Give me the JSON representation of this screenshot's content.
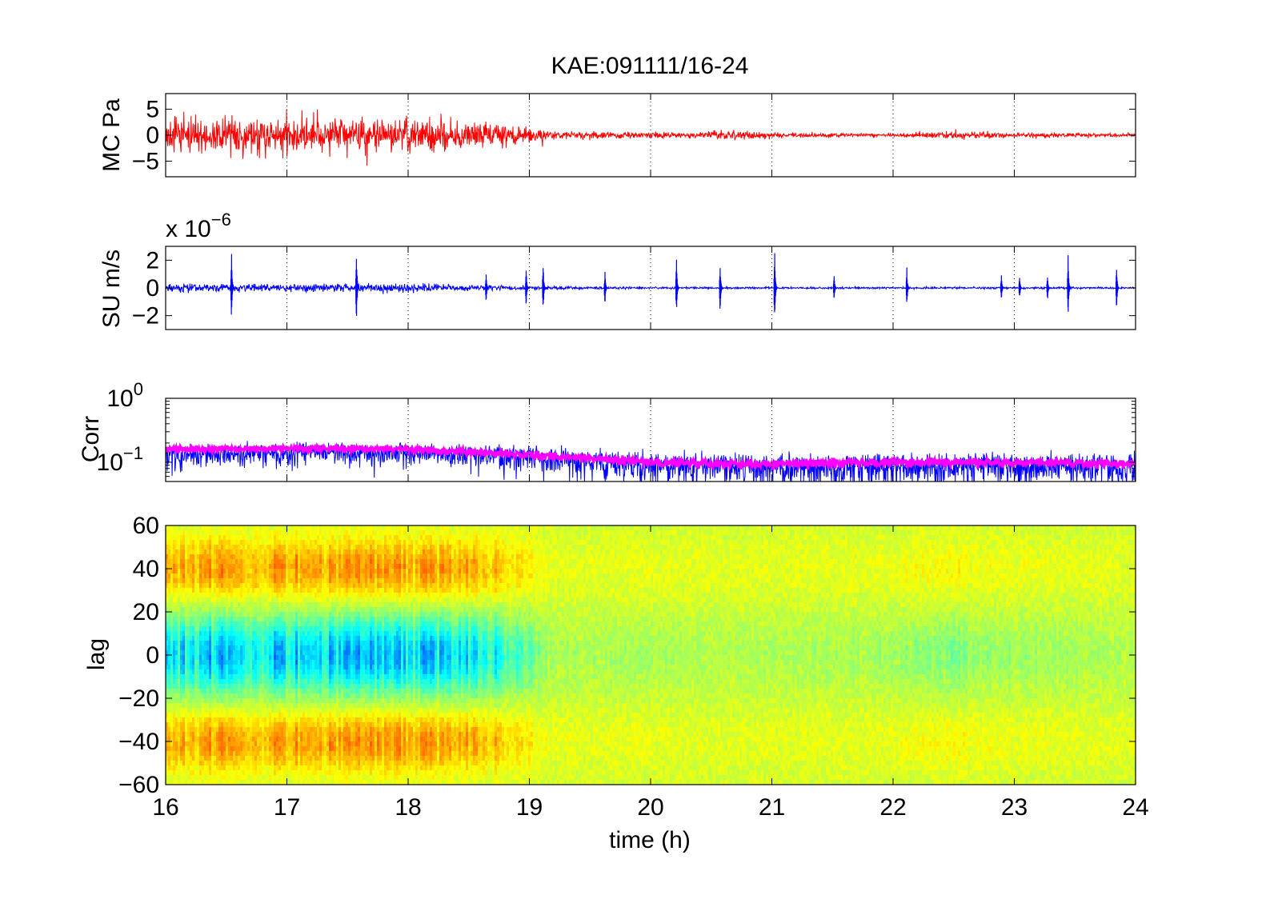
{
  "chart_data": [
    {
      "type": "line",
      "title": "KAE:091111/16-24",
      "ylabel": "MC Pa",
      "xlim": [
        16,
        24
      ],
      "ylim": [
        -8,
        8
      ],
      "xticks": [
        16,
        17,
        18,
        19,
        20,
        21,
        22,
        23,
        24
      ],
      "yticks": [
        -5,
        0,
        5
      ],
      "ytick_labels": [
        "−5",
        "0",
        "5"
      ],
      "grid": "vertical dotted",
      "series_color": "#ff0000",
      "envelope": {
        "x": [
          16,
          16.5,
          17,
          17.5,
          18,
          18.5,
          19,
          19.2,
          19.5,
          20,
          20.3,
          20.5,
          20.8,
          21,
          21.5,
          22,
          22.3,
          22.7,
          23,
          23.5,
          24
        ],
        "amplitude": [
          5.5,
          5.5,
          5.2,
          5.0,
          5.0,
          4.0,
          2.5,
          1.2,
          1.0,
          0.9,
          0.8,
          1.3,
          1.2,
          0.8,
          0.6,
          0.4,
          1.0,
          1.1,
          0.7,
          0.6,
          0.5
        ]
      }
    },
    {
      "type": "line",
      "ylabel": "SU m/s",
      "y_exponent_label": "x 10",
      "y_exponent_power": "−6",
      "xlim": [
        16,
        24
      ],
      "ylim": [
        -3,
        3
      ],
      "xticks": [
        16,
        17,
        18,
        19,
        20,
        21,
        22,
        23,
        24
      ],
      "yticks": [
        -2,
        0,
        2
      ],
      "ytick_labels": [
        "−2",
        "0",
        "2"
      ],
      "grid": "vertical dotted",
      "series_color": "#0000ff",
      "noise_envelope": {
        "x": [
          16,
          17,
          18,
          18.5,
          19,
          19.5,
          20,
          21,
          22,
          23,
          24
        ],
        "amplitude": [
          0.45,
          0.4,
          0.45,
          0.3,
          0.2,
          0.12,
          0.1,
          0.1,
          0.1,
          0.1,
          0.1
        ]
      },
      "spikes": [
        {
          "x": 16.55,
          "amplitude": 2.6
        },
        {
          "x": 17.58,
          "amplitude": 2.9
        },
        {
          "x": 18.65,
          "amplitude": 1.2
        },
        {
          "x": 18.98,
          "amplitude": 1.5
        },
        {
          "x": 19.12,
          "amplitude": 2.0
        },
        {
          "x": 19.63,
          "amplitude": 1.3
        },
        {
          "x": 20.22,
          "amplitude": 2.2
        },
        {
          "x": 20.58,
          "amplitude": 2.0
        },
        {
          "x": 21.03,
          "amplitude": 3.0
        },
        {
          "x": 21.52,
          "amplitude": 1.0
        },
        {
          "x": 22.12,
          "amplitude": 1.5
        },
        {
          "x": 22.9,
          "amplitude": 1.0
        },
        {
          "x": 23.05,
          "amplitude": 0.9
        },
        {
          "x": 23.28,
          "amplitude": 1.0
        },
        {
          "x": 23.45,
          "amplitude": 2.4
        },
        {
          "x": 23.85,
          "amplitude": 1.7
        }
      ]
    },
    {
      "type": "line",
      "ylabel": "Corr",
      "yscale": "log",
      "xlim": [
        16,
        24
      ],
      "ylim": [
        0.05,
        1
      ],
      "xticks": [
        16,
        17,
        18,
        19,
        20,
        21,
        22,
        23,
        24
      ],
      "ytick_labels": [
        {
          "base": "10",
          "exp": "0",
          "value": 1
        },
        {
          "base": "10",
          "exp": "−1",
          "value": 0.1
        }
      ],
      "grid": "vertical dotted",
      "series": [
        {
          "color": "#0000ff",
          "mean": {
            "x": [
              16,
              17,
              18,
              19,
              20,
              21,
              22,
              23,
              24
            ],
            "y": [
              0.13,
              0.14,
              0.14,
              0.12,
              0.09,
              0.085,
              0.085,
              0.09,
              0.085
            ]
          },
          "spread": {
            "x": [
              16,
              17,
              18,
              19,
              20,
              21,
              22,
              23,
              24
            ],
            "y": [
              0.08,
              0.08,
              0.08,
              0.08,
              0.07,
              0.07,
              0.07,
              0.07,
              0.07
            ]
          }
        },
        {
          "color": "#ff00ff",
          "mean": {
            "x": [
              16,
              17,
              18,
              19,
              20,
              21,
              22,
              23,
              24
            ],
            "y": [
              0.16,
              0.165,
              0.16,
              0.13,
              0.1,
              0.095,
              0.1,
              0.1,
              0.095
            ]
          },
          "spread": {
            "x": [
              16,
              17,
              18,
              19,
              20,
              21,
              22,
              23,
              24
            ],
            "y": [
              0.03,
              0.03,
              0.03,
              0.03,
              0.025,
              0.025,
              0.025,
              0.025,
              0.025
            ]
          }
        }
      ]
    },
    {
      "type": "heatmap",
      "ylabel": "lag",
      "xlabel": "time (h)",
      "xlim": [
        16,
        24
      ],
      "ylim": [
        -60,
        60
      ],
      "xticks": [
        16,
        17,
        18,
        19,
        20,
        21,
        22,
        23,
        24
      ],
      "yticks": [
        -60,
        -40,
        -20,
        0,
        20,
        40,
        60
      ],
      "ytick_labels": [
        "−60",
        "−40",
        "−20",
        "0",
        "20",
        "40",
        "60"
      ],
      "colormap": "jet",
      "value_range": [
        -1,
        1
      ],
      "pattern": {
        "x": [
          16,
          17,
          18,
          18.7,
          19,
          19.2,
          20,
          21,
          22,
          22.5,
          23,
          24
        ],
        "strength": [
          0.95,
          1.0,
          1.0,
          0.85,
          0.4,
          0.15,
          0.15,
          0.12,
          0.2,
          0.3,
          0.2,
          0.1
        ],
        "center_lag": 0,
        "band_width_lag": 18,
        "side_lobe_lag": 40
      }
    }
  ]
}
